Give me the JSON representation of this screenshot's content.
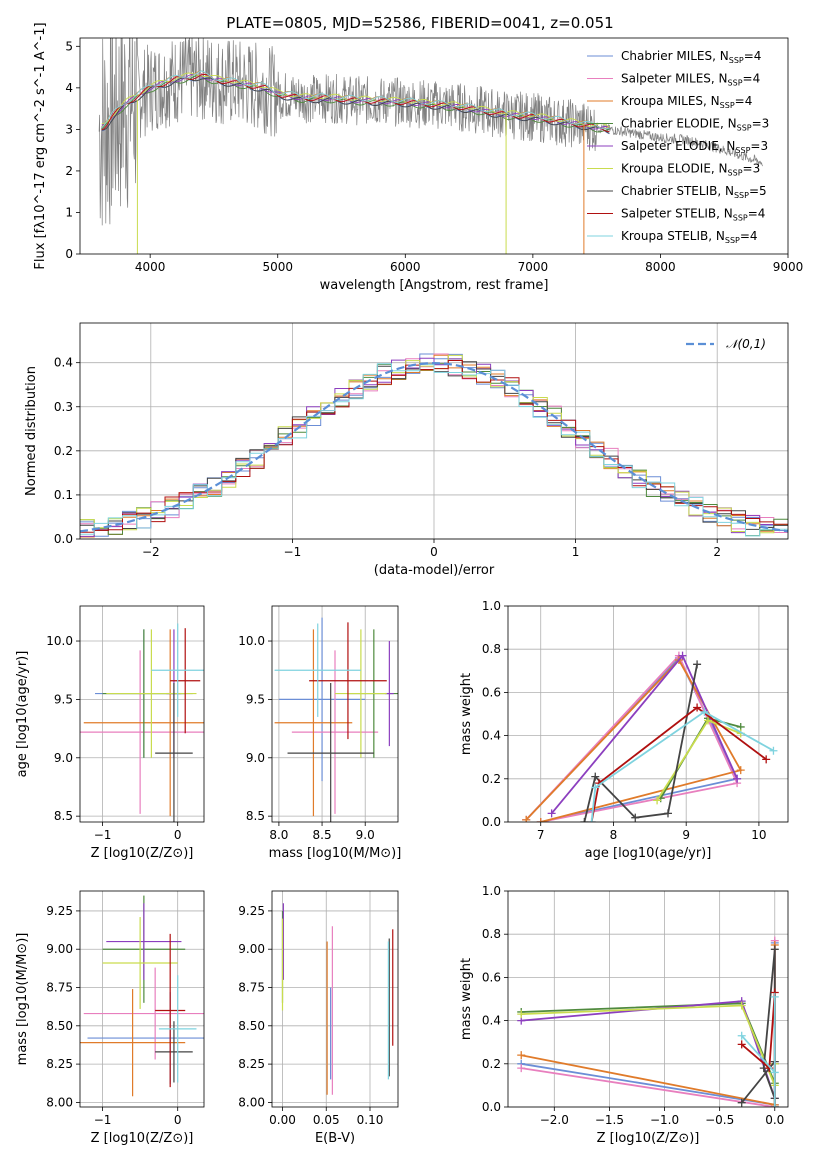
{
  "figure_title": "PLATE=0805, MJD=52586, FIBERID=0041, z=0.051",
  "model_colors": [
    "#6b8ed6",
    "#e87fbe",
    "#e07b2a",
    "#4f8a3e",
    "#8c3fbf",
    "#c9dc4e",
    "#444444",
    "#b01010",
    "#7fd3df"
  ],
  "model_names": [
    "Chabrier MILES, N_SSP=4",
    "Salpeter MILES, N_SSP=4",
    "Kroupa MILES, N_SSP=4",
    "Chabrier ELODIE, N_SSP=3",
    "Salpeter ELODIE, N_SSP=3",
    "Kroupa ELODIE, N_SSP=3",
    "Chabrier STELIB, N_SSP=5",
    "Salpeter STELIB, N_SSP=4",
    "Kroupa STELIB, N_SSP=4"
  ],
  "chart_data": [
    {
      "id": "spectrum",
      "type": "line",
      "xlabel": "wavelength [Angstrom, rest frame]",
      "ylabel": "Flux [fλ10^-17 erg cm^-2 s^-1 A^-1]",
      "xlim": [
        3450,
        9000
      ],
      "ylim": [
        0,
        5.2
      ],
      "xticks": [
        4000,
        5000,
        6000,
        7000,
        8000,
        9000
      ],
      "yticks": [
        0,
        1,
        2,
        3,
        4,
        5
      ],
      "grid": false,
      "legend": "top-right",
      "data_color": "#808080",
      "continuum": {
        "x": [
          3600,
          3650,
          3700,
          3800,
          3900,
          4000,
          4100,
          4200,
          4300,
          4400,
          4500,
          4600,
          4700,
          4800,
          4900,
          5000,
          5200,
          5400,
          5600,
          5800,
          6000,
          6200,
          6400,
          6600,
          6800,
          7000,
          7200,
          7400,
          7600,
          7800,
          8000,
          8200,
          8400,
          8600,
          8800
        ],
        "y": [
          3.0,
          3.1,
          3.3,
          3.6,
          3.8,
          4.0,
          4.1,
          4.2,
          4.25,
          4.3,
          4.2,
          4.15,
          4.1,
          4.05,
          4.0,
          3.85,
          3.75,
          3.75,
          3.7,
          3.68,
          3.65,
          3.6,
          3.55,
          3.45,
          3.35,
          3.3,
          3.2,
          3.1,
          3.0,
          2.9,
          2.8,
          2.75,
          2.6,
          2.4,
          2.2
        ]
      }
    },
    {
      "id": "residuals",
      "type": "line",
      "xlabel": "(data-model)/error",
      "ylabel": "Normed distribution",
      "xlim": [
        -2.5,
        2.5
      ],
      "ylim": [
        0,
        0.49
      ],
      "xticks": [
        -2,
        -1,
        0,
        1,
        2
      ],
      "yticks": [
        0.0,
        0.1,
        0.2,
        0.3,
        0.4
      ],
      "grid": true,
      "legend": "top-right",
      "series": [
        {
          "name": "𝒩(0,1)",
          "color": "#5b8fd6"
        }
      ]
    },
    {
      "id": "age_vs_Z",
      "type": "scatter",
      "xlabel": "Z [log10(Z/Z⊙)]",
      "ylabel": "age  [log10(age/yr)]",
      "xlim": [
        -1.3,
        0.35
      ],
      "ylim": [
        8.45,
        10.3
      ],
      "xticks": [
        -1,
        0
      ],
      "yticks": [
        8.5,
        9.0,
        9.5,
        10.0
      ],
      "grid": true,
      "points": [
        {
          "x": -0.45,
          "y": 9.55,
          "xerr": 0.65,
          "yerr": 0.55,
          "model": 0
        },
        {
          "x": -0.5,
          "y": 9.22,
          "xerr": 0.95,
          "yerr": 0.7,
          "model": 1
        },
        {
          "x": -0.1,
          "y": 9.3,
          "xerr": 1.15,
          "yerr": 0.8,
          "model": 2
        },
        {
          "x": -0.45,
          "y": 9.55,
          "xerr": 0.55,
          "yerr": 0.55,
          "model": 3
        },
        {
          "x": -0.05,
          "y": 9.55,
          "xerr": 0.1,
          "yerr": 0.55,
          "model": 4
        },
        {
          "x": -0.35,
          "y": 9.55,
          "xerr": 0.6,
          "yerr": 0.55,
          "model": 5
        },
        {
          "x": -0.05,
          "y": 9.04,
          "xerr": 0.25,
          "yerr": 0.6,
          "model": 6
        },
        {
          "x": 0.1,
          "y": 9.66,
          "xerr": 0.2,
          "yerr": 0.45,
          "model": 7
        },
        {
          "x": 0.0,
          "y": 9.75,
          "xerr": 0.35,
          "yerr": 0.4,
          "model": 8
        }
      ]
    },
    {
      "id": "age_vs_mass",
      "type": "scatter",
      "xlabel": "mass [log10(M/M⊙)]",
      "ylabel": "",
      "xlim": [
        7.92,
        9.38
      ],
      "ylim": [
        8.45,
        10.3
      ],
      "xticks": [
        8.0,
        8.5,
        9.0
      ],
      "yticks": [
        8.5,
        9.0,
        9.5,
        10.0
      ],
      "grid": true,
      "points": [
        {
          "x": 8.5,
          "y": 9.5,
          "xerr": 0.5,
          "yerr": 0.7,
          "model": 0
        },
        {
          "x": 8.65,
          "y": 9.22,
          "xerr": 0.5,
          "yerr": 0.7,
          "model": 1
        },
        {
          "x": 8.4,
          "y": 9.3,
          "xerr": 0.45,
          "yerr": 0.8,
          "model": 2
        },
        {
          "x": 9.1,
          "y": 9.55,
          "xerr": 0.3,
          "yerr": 0.55,
          "model": 3
        },
        {
          "x": 9.28,
          "y": 9.55,
          "xerr": 0.05,
          "yerr": 0.45,
          "model": 4
        },
        {
          "x": 8.95,
          "y": 9.55,
          "xerr": 0.3,
          "yerr": 0.55,
          "model": 5
        },
        {
          "x": 8.6,
          "y": 9.04,
          "xerr": 0.5,
          "yerr": 0.6,
          "model": 6
        },
        {
          "x": 8.8,
          "y": 9.66,
          "xerr": 0.45,
          "yerr": 0.5,
          "model": 7
        },
        {
          "x": 8.45,
          "y": 9.75,
          "xerr": 0.5,
          "yerr": 0.4,
          "model": 8
        }
      ]
    },
    {
      "id": "mass_weight_vs_age",
      "type": "line",
      "xlabel": "age  [log10(age/yr)]",
      "ylabel": "mass weight",
      "xlim": [
        6.55,
        10.4
      ],
      "ylim": [
        0,
        1.0
      ],
      "xticks": [
        7,
        8,
        9,
        10
      ],
      "yticks": [
        0.0,
        0.2,
        0.4,
        0.6,
        0.8,
        1.0
      ],
      "grid": true,
      "series": [
        {
          "name": "Chabrier MILES",
          "x": [
            6.8,
            8.9,
            9.7,
            7.0
          ],
          "y": [
            0.01,
            0.76,
            0.2,
            0.0
          ]
        },
        {
          "name": "Salpeter MILES",
          "x": [
            6.8,
            8.9,
            9.7,
            7.0
          ],
          "y": [
            0.01,
            0.77,
            0.18,
            0.0
          ]
        },
        {
          "name": "Kroupa MILES",
          "x": [
            6.8,
            8.9,
            9.75,
            7.0
          ],
          "y": [
            0.01,
            0.75,
            0.24,
            0.0
          ]
        },
        {
          "name": "Chabrier ELODIE",
          "x": [
            8.65,
            9.3,
            9.75
          ],
          "y": [
            0.11,
            0.48,
            0.44
          ]
        },
        {
          "name": "Salpeter ELODIE",
          "x": [
            7.15,
            8.95,
            9.7
          ],
          "y": [
            0.04,
            0.77,
            0.2
          ]
        },
        {
          "name": "Kroupa ELODIE",
          "x": [
            8.6,
            9.3,
            9.75
          ],
          "y": [
            0.1,
            0.47,
            0.41
          ]
        },
        {
          "name": "Chabrier STELIB",
          "x": [
            7.6,
            7.75,
            8.3,
            8.75,
            9.15
          ],
          "y": [
            0.0,
            0.21,
            0.02,
            0.04,
            0.73
          ]
        },
        {
          "name": "Salpeter STELIB",
          "x": [
            7.7,
            7.8,
            9.15,
            10.1
          ],
          "y": [
            0.0,
            0.18,
            0.53,
            0.29
          ]
        },
        {
          "name": "Kroupa STELIB",
          "x": [
            7.7,
            7.75,
            9.25,
            10.2
          ],
          "y": [
            0.0,
            0.16,
            0.51,
            0.33
          ]
        }
      ]
    },
    {
      "id": "mass_vs_Z",
      "type": "scatter",
      "xlabel": "Z [log10(Z/Z⊙)]",
      "ylabel": "mass [log10(M/M⊙)]",
      "xlim": [
        -1.3,
        0.35
      ],
      "ylim": [
        7.97,
        9.38
      ],
      "xticks": [
        -1,
        0
      ],
      "yticks": [
        8.0,
        8.25,
        8.5,
        8.75,
        9.0,
        9.25
      ],
      "grid": true,
      "points": [
        {
          "x": -0.1,
          "y": 8.42,
          "xerr": 1.1,
          "yerr": 0.3,
          "model": 0
        },
        {
          "x": -0.3,
          "y": 8.58,
          "xerr": 0.95,
          "yerr": 0.3,
          "model": 1
        },
        {
          "x": -0.6,
          "y": 8.39,
          "xerr": 0.7,
          "yerr": 0.35,
          "model": 2
        },
        {
          "x": -0.45,
          "y": 9.0,
          "xerr": 0.55,
          "yerr": 0.35,
          "model": 3
        },
        {
          "x": -0.45,
          "y": 9.05,
          "xerr": 0.5,
          "yerr": 0.25,
          "model": 4
        },
        {
          "x": -0.5,
          "y": 8.91,
          "xerr": 0.5,
          "yerr": 0.3,
          "model": 5
        },
        {
          "x": -0.05,
          "y": 8.33,
          "xerr": 0.25,
          "yerr": 0.2,
          "model": 6
        },
        {
          "x": -0.1,
          "y": 8.6,
          "xerr": 0.2,
          "yerr": 0.5,
          "model": 7
        },
        {
          "x": 0.0,
          "y": 8.48,
          "xerr": 0.25,
          "yerr": 0.35,
          "model": 8
        }
      ]
    },
    {
      "id": "mass_vs_ebv",
      "type": "scatter",
      "xlabel": "E(B-V)",
      "ylabel": "",
      "xlim": [
        -0.012,
        0.132
      ],
      "ylim": [
        7.97,
        9.38
      ],
      "xticks": [
        0.0,
        0.05,
        0.1
      ],
      "yticks": [
        8.0,
        8.25,
        8.5,
        8.75,
        9.0,
        9.25
      ],
      "grid": true,
      "points": [
        {
          "x": 0.055,
          "y": 8.45,
          "xerr": 0,
          "yerr": 0.3,
          "model": 0
        },
        {
          "x": 0.057,
          "y": 8.6,
          "xerr": 0,
          "yerr": 0.55,
          "model": 1
        },
        {
          "x": 0.051,
          "y": 8.55,
          "xerr": 0,
          "yerr": 0.5,
          "model": 2
        },
        {
          "x": 0.0,
          "y": 8.95,
          "xerr": 0,
          "yerr": 0.3,
          "model": 3
        },
        {
          "x": 0.001,
          "y": 9.05,
          "xerr": 0,
          "yerr": 0.25,
          "model": 4
        },
        {
          "x": 0.0,
          "y": 8.9,
          "xerr": 0,
          "yerr": 0.3,
          "model": 5
        },
        {
          "x": 0.122,
          "y": 8.62,
          "xerr": 0,
          "yerr": 0.45,
          "model": 6
        },
        {
          "x": 0.126,
          "y": 8.75,
          "xerr": 0,
          "yerr": 0.38,
          "model": 7
        },
        {
          "x": 0.121,
          "y": 8.6,
          "xerr": 0,
          "yerr": 0.45,
          "model": 8
        }
      ]
    },
    {
      "id": "mass_weight_vs_Z",
      "type": "line",
      "xlabel": "Z [log10(Z/Z⊙)]",
      "ylabel": "mass weight",
      "xlim": [
        -2.42,
        0.12
      ],
      "ylim": [
        0,
        1.0
      ],
      "xticks": [
        -2.0,
        -1.5,
        -1.0,
        -0.5,
        0.0
      ],
      "yticks": [
        0.0,
        0.2,
        0.4,
        0.6,
        0.8,
        1.0
      ],
      "grid": true,
      "series": [
        {
          "name": "Chabrier MILES",
          "x": [
            -2.3,
            0.0,
            0.0,
            0.0
          ],
          "y": [
            0.2,
            0.01,
            0.76,
            0.0
          ]
        },
        {
          "name": "Salpeter MILES",
          "x": [
            -2.3,
            0.0,
            0.0
          ],
          "y": [
            0.18,
            0.0,
            0.77
          ]
        },
        {
          "name": "Kroupa MILES",
          "x": [
            -2.3,
            0.0,
            0.0
          ],
          "y": [
            0.24,
            0.01,
            0.75
          ]
        },
        {
          "name": "Chabrier ELODIE",
          "x": [
            -2.3,
            -0.3,
            0.0,
            0.0
          ],
          "y": [
            0.44,
            0.48,
            0.11,
            0.0
          ]
        },
        {
          "name": "Salpeter ELODIE",
          "x": [
            -2.3,
            -0.3,
            0.0,
            0.0
          ],
          "y": [
            0.4,
            0.49,
            0.04,
            0.2
          ]
        },
        {
          "name": "Kroupa ELODIE",
          "x": [
            -2.3,
            -0.3,
            0.0,
            0.0
          ],
          "y": [
            0.43,
            0.47,
            0.1,
            0.2
          ]
        },
        {
          "name": "Chabrier STELIB",
          "x": [
            -0.3,
            0.0,
            0.0,
            -0.1,
            0.0
          ],
          "y": [
            0.02,
            0.21,
            0.73,
            0.18,
            0.04
          ]
        },
        {
          "name": "Salpeter STELIB",
          "x": [
            -0.3,
            -0.05,
            0.0,
            0.0
          ],
          "y": [
            0.29,
            0.18,
            0.53,
            0.0
          ]
        },
        {
          "name": "Kroupa STELIB",
          "x": [
            -0.3,
            0.0,
            0.0,
            0.0
          ],
          "y": [
            0.33,
            0.16,
            0.51,
            0.0
          ]
        }
      ]
    }
  ]
}
